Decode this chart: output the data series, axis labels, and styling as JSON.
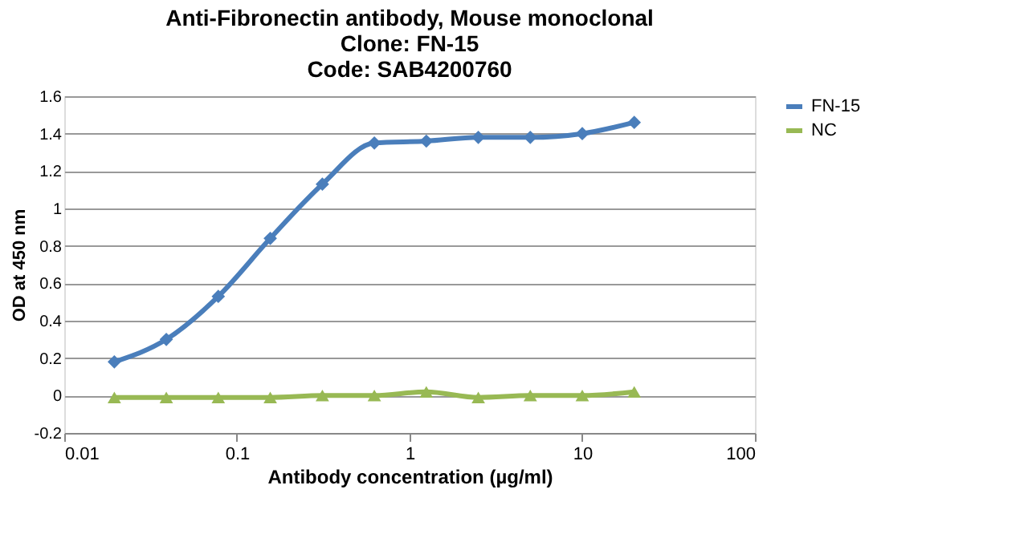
{
  "chart_data": {
    "type": "line",
    "title": [
      "Anti-Fibronectin antibody, Mouse monoclonal",
      "Clone: FN-15",
      "Code: SAB4200760"
    ],
    "xlabel": "Antibody concentration (µg/ml)",
    "ylabel": "OD at 450 nm",
    "x": [
      0.0195,
      0.039,
      0.078,
      0.156,
      0.3125,
      0.625,
      1.25,
      2.5,
      5,
      10,
      20
    ],
    "series": [
      {
        "name": "FN-15",
        "color": "#4a7ebb",
        "marker": "diamond",
        "values": [
          0.18,
          0.3,
          0.53,
          0.84,
          1.13,
          1.35,
          1.36,
          1.38,
          1.38,
          1.4,
          1.46
        ]
      },
      {
        "name": "NC",
        "color": "#98b954",
        "marker": "triangle",
        "values": [
          -0.01,
          -0.01,
          -0.01,
          -0.01,
          0.0,
          0.0,
          0.02,
          -0.01,
          0.0,
          0.0,
          0.02
        ]
      }
    ],
    "log": "x",
    "xlim": [
      0.01,
      100
    ],
    "xticks": [
      0.01,
      0.1,
      1,
      10,
      100
    ],
    "ylim": [
      -0.2,
      1.6
    ],
    "yticks": [
      -0.2,
      0,
      0.2,
      0.4,
      0.6,
      0.8,
      1,
      1.2,
      1.4,
      1.6
    ],
    "grid": "y",
    "legend": "right",
    "line_style": "solid"
  }
}
